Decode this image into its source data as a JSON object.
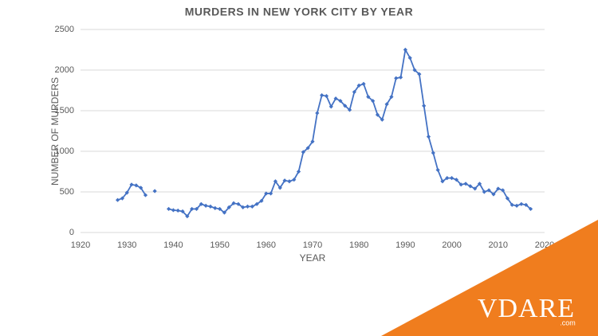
{
  "chart_data": {
    "type": "line",
    "title": "MURDERS IN NEW YORK CITY BY YEAR",
    "x_label": "YEAR",
    "y_label": "NUMBER OF MURDERS",
    "x": [
      1928,
      1929,
      1930,
      1931,
      1932,
      1933,
      1934,
      1935,
      1936,
      1937,
      1938,
      1939,
      1940,
      1941,
      1942,
      1943,
      1944,
      1945,
      1946,
      1947,
      1948,
      1949,
      1950,
      1951,
      1952,
      1953,
      1954,
      1955,
      1956,
      1957,
      1958,
      1959,
      1960,
      1961,
      1962,
      1963,
      1964,
      1965,
      1966,
      1967,
      1968,
      1969,
      1970,
      1971,
      1972,
      1973,
      1974,
      1975,
      1976,
      1977,
      1978,
      1979,
      1980,
      1981,
      1982,
      1983,
      1984,
      1985,
      1986,
      1987,
      1988,
      1989,
      1990,
      1991,
      1992,
      1993,
      1994,
      1995,
      1996,
      1997,
      1998,
      1999,
      2000,
      2001,
      2002,
      2003,
      2004,
      2005,
      2006,
      2007,
      2008,
      2009,
      2010,
      2011,
      2012,
      2013,
      2014,
      2015,
      2016,
      2017
    ],
    "series": [
      {
        "name": "Murders",
        "color": "#4472c4",
        "values": [
          400,
          420,
          490,
          590,
          580,
          550,
          460,
          null,
          510,
          null,
          null,
          290,
          275,
          270,
          260,
          200,
          290,
          290,
          350,
          330,
          320,
          300,
          290,
          245,
          310,
          360,
          350,
          310,
          320,
          320,
          350,
          390,
          480,
          480,
          630,
          550,
          640,
          630,
          650,
          750,
          990,
          1040,
          1120,
          1470,
          1690,
          1680,
          1550,
          1650,
          1620,
          1560,
          1510,
          1730,
          1810,
          1830,
          1670,
          1620,
          1450,
          1390,
          1580,
          1670,
          1900,
          1910,
          2250,
          2150,
          2000,
          1950,
          1560,
          1180,
          980,
          770,
          630,
          670,
          670,
          650,
          590,
          600,
          570,
          540,
          600,
          500,
          520,
          470,
          540,
          520,
          420,
          340,
          330,
          350,
          340,
          290
        ]
      }
    ],
    "xlim": [
      1920,
      2020
    ],
    "xticks": [
      1920,
      1930,
      1940,
      1950,
      1960,
      1970,
      1980,
      1990,
      2000,
      2010,
      2020
    ],
    "ylim": [
      0,
      2500
    ],
    "yticks": [
      0,
      500,
      1000,
      1500,
      2000,
      2500
    ],
    "grid": true
  },
  "watermark": {
    "brand": "VDARE",
    "domain": ".com"
  }
}
